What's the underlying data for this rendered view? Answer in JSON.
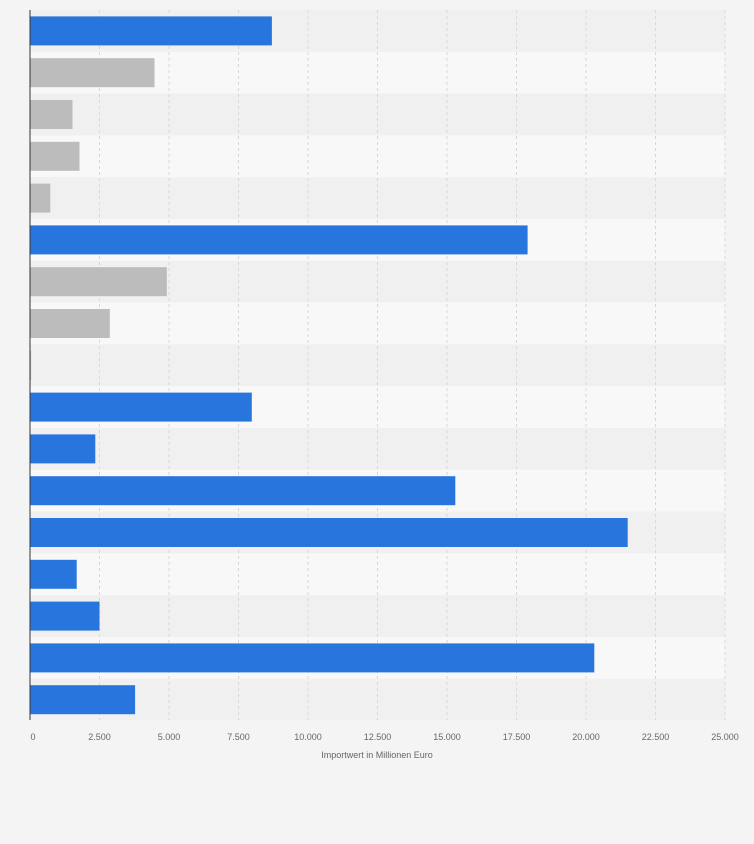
{
  "colors": {
    "background": "#f4f4f4",
    "band_dark": "#f0f0f0",
    "band_light": "#f8f8f8",
    "grid": "#d8d8d8",
    "axis": "#333333",
    "tick_text": "#666666",
    "blue": "#2876dd",
    "gray": "#bcbcbc"
  },
  "chart_data": {
    "type": "bar",
    "orientation": "horizontal",
    "xlabel": "Importwert in Millionen Euro",
    "ylabel": "",
    "xlim": [
      0,
      25000
    ],
    "xticks": [
      0,
      2500,
      5000,
      7500,
      10000,
      12500,
      15000,
      17500,
      20000,
      22500,
      25000
    ],
    "xtick_labels": [
      "0",
      "2.500",
      "5.000",
      "7.500",
      "10.000",
      "12.500",
      "15.000",
      "17.500",
      "20.000",
      "22.500",
      "25.000"
    ],
    "category_labels_visible": false,
    "grid": true,
    "legend": "none",
    "values": [
      8700,
      4480,
      1530,
      1780,
      730,
      17900,
      4920,
      2870,
      40,
      7980,
      2350,
      15300,
      21500,
      1680,
      2500,
      20300,
      3780
    ],
    "bar_colors": [
      "blue",
      "gray",
      "gray",
      "gray",
      "gray",
      "blue",
      "gray",
      "gray",
      "gray",
      "blue",
      "blue",
      "blue",
      "blue",
      "blue",
      "blue",
      "blue",
      "blue"
    ]
  }
}
